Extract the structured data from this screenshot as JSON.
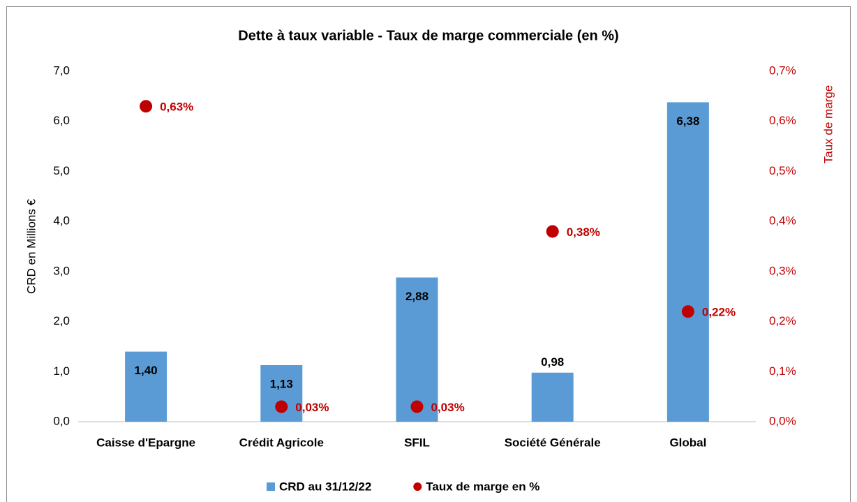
{
  "chart_data": {
    "type": "combo",
    "title": "Dette à taux variable - Taux de marge commerciale (en %)",
    "y_label": "CRD en Millions €",
    "y2_label": "Taux de marge",
    "categories": [
      "Caisse d'Epargne",
      "Crédit Agricole",
      "SFIL",
      "Société Générale",
      "Global"
    ],
    "series": [
      {
        "name": "CRD au 31/12/22",
        "type": "bar",
        "color": "#5b9bd5",
        "values": [
          1.4,
          1.13,
          2.88,
          0.98,
          6.38
        ],
        "value_labels": [
          "1,40",
          "1,13",
          "2,88",
          "0,98",
          "6,38"
        ]
      },
      {
        "name": "Taux de marge en %",
        "type": "scatter",
        "axis": "y2",
        "color": "#c00000",
        "values": [
          0.63,
          0.03,
          0.03,
          0.38,
          0.22
        ],
        "value_labels": [
          "0,63%",
          "0,03%",
          "0,03%",
          "0,38%",
          "0,22%"
        ]
      }
    ],
    "ylim": [
      0,
      7
    ],
    "yticks": [
      {
        "value": 0,
        "label": "0,0"
      },
      {
        "value": 1,
        "label": "1,0"
      },
      {
        "value": 2,
        "label": "2,0"
      },
      {
        "value": 3,
        "label": "3,0"
      },
      {
        "value": 4,
        "label": "4,0"
      },
      {
        "value": 5,
        "label": "5,0"
      },
      {
        "value": 6,
        "label": "6,0"
      },
      {
        "value": 7,
        "label": "7,0"
      }
    ],
    "y2lim": [
      0,
      0.7
    ],
    "y2ticks": [
      {
        "value": 0,
        "label": "0,0%"
      },
      {
        "value": 0.1,
        "label": "0,1%"
      },
      {
        "value": 0.2,
        "label": "0,2%"
      },
      {
        "value": 0.3,
        "label": "0,3%"
      },
      {
        "value": 0.4,
        "label": "0,4%"
      },
      {
        "value": 0.5,
        "label": "0,5%"
      },
      {
        "value": 0.6,
        "label": "0,6%"
      },
      {
        "value": 0.7,
        "label": "0,7%"
      }
    ],
    "grid": false,
    "legend": "bottom"
  }
}
